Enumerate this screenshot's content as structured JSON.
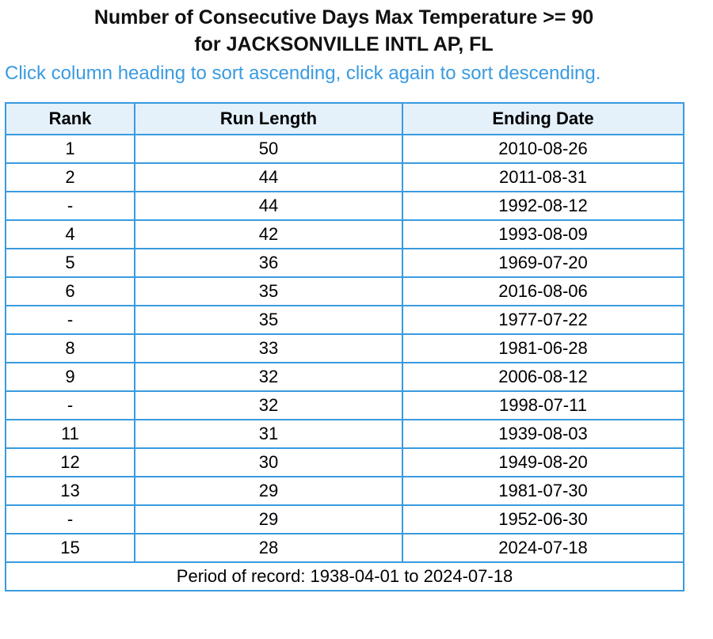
{
  "title": {
    "line1": "Number of Consecutive Days Max Temperature >= 90",
    "line2": "for JACKSONVILLE INTL AP, FL"
  },
  "hint": "Click column heading to sort ascending, click again to sort descending.",
  "table": {
    "headers": [
      "Rank",
      "Run Length",
      "Ending Date"
    ],
    "rows": [
      [
        "1",
        "50",
        "2010-08-26"
      ],
      [
        "2",
        "44",
        "2011-08-31"
      ],
      [
        "-",
        "44",
        "1992-08-12"
      ],
      [
        "4",
        "42",
        "1993-08-09"
      ],
      [
        "5",
        "36",
        "1969-07-20"
      ],
      [
        "6",
        "35",
        "2016-08-06"
      ],
      [
        "-",
        "35",
        "1977-07-22"
      ],
      [
        "8",
        "33",
        "1981-06-28"
      ],
      [
        "9",
        "32",
        "2006-08-12"
      ],
      [
        "-",
        "32",
        "1998-07-11"
      ],
      [
        "11",
        "31",
        "1939-08-03"
      ],
      [
        "12",
        "30",
        "1949-08-20"
      ],
      [
        "13",
        "29",
        "1981-07-30"
      ],
      [
        "-",
        "29",
        "1952-06-30"
      ],
      [
        "15",
        "28",
        "2024-07-18"
      ]
    ],
    "footer": "Period of record: 1938-04-01 to 2024-07-18"
  },
  "colors": {
    "border": "#3a9be0",
    "header_bg": "#e4f1fb",
    "hint_text": "#3a9be0"
  }
}
